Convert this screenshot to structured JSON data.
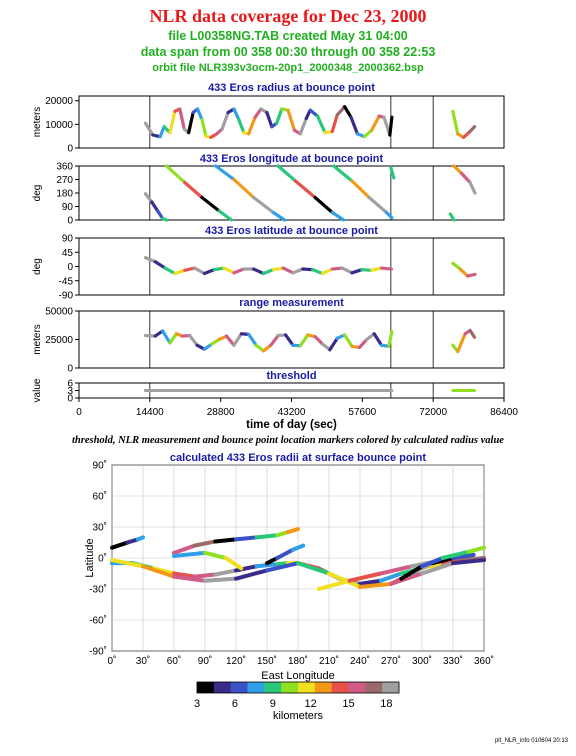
{
  "header": {
    "title": "NLR data coverage for Dec 23, 2000",
    "file_line": "file L00358NG.TAB created May 31 04:00",
    "span_line": "data span from 00 358 00:30 through 00 358 22:53",
    "orbit_line": "orbit file NLR393v3ocm-20p1_2000348_2000362.bsp"
  },
  "caption": "threshold, NLR measurement and bounce point location markers colored by calculated radius value",
  "footer": "plt_NLR_info 010604 20:13",
  "colors": {
    "title": "#e8181a",
    "subtitle": "#20b020",
    "panel_title": "#1a1aa8",
    "colorbar": [
      "#000000",
      "#3a2a8a",
      "#3a52c8",
      "#2fa0e8",
      "#28c878",
      "#8ee020",
      "#f0e020",
      "#f29a18",
      "#e8504a",
      "#d05a88",
      "#9a6a6a",
      "#a0a0a0"
    ]
  },
  "chart_data": [
    {
      "type": "line",
      "title": "433 Eros radius at bounce point",
      "ylabel": "meters",
      "yticks": [
        "0",
        "10000",
        "20000"
      ],
      "ylim": [
        0,
        22000
      ],
      "xlim": [
        0,
        86400
      ],
      "vlines": [
        14400,
        63400,
        72000
      ],
      "segments": [
        {
          "x": [
            13500,
            15000,
            16500,
            17300,
            18500,
            19500,
            20500,
            21400,
            22300,
            23200,
            24100,
            25000,
            25800,
            26800,
            28000,
            29100,
            30300,
            31500,
            32500,
            33500,
            34500,
            35800,
            37000,
            38200,
            39200,
            40200,
            41200,
            42500,
            43800,
            45000,
            46200,
            47000,
            48500,
            50000,
            51500,
            52500,
            54000,
            55300,
            56600,
            58000,
            59500,
            61000,
            62000,
            63200,
            63600
          ],
          "y": [
            10500,
            5500,
            4800,
            9000,
            6500,
            15500,
            16500,
            8000,
            6500,
            15000,
            16500,
            12000,
            5000,
            4500,
            6000,
            8000,
            15000,
            16500,
            12000,
            6500,
            6000,
            13000,
            16500,
            15000,
            9000,
            10500,
            16500,
            16000,
            7500,
            6000,
            12500,
            16000,
            13500,
            6500,
            7000,
            14000,
            17500,
            13000,
            6000,
            4800,
            7500,
            13500,
            13000,
            5500,
            13000
          ]
        },
        {
          "x": [
            76000,
            77000,
            78200,
            79500,
            80400
          ],
          "y": [
            15500,
            6000,
            4500,
            7000,
            9000
          ]
        }
      ]
    },
    {
      "type": "line",
      "title": "433 Eros longitude at bounce point",
      "ylabel": "deg",
      "yticks": [
        "0",
        "90",
        "180",
        "270",
        "360"
      ],
      "ylim": [
        0,
        360
      ],
      "xlim": [
        0,
        86400
      ],
      "vlines": [
        14400,
        63400,
        72000
      ],
      "segments": [
        {
          "x": [
            13500,
            14800,
            16000,
            17000,
            17800
          ],
          "y": [
            175,
            120,
            60,
            10,
            0
          ]
        },
        {
          "x": [
            17800,
            21500,
            25000,
            28500,
            31000
          ],
          "y": [
            360,
            250,
            150,
            60,
            0
          ]
        },
        {
          "x": [
            27800,
            31500,
            35500,
            39500,
            41800
          ],
          "y": [
            360,
            270,
            150,
            50,
            0
          ]
        },
        {
          "x": [
            40500,
            44000,
            48000,
            51500,
            53800
          ],
          "y": [
            360,
            260,
            150,
            50,
            0
          ]
        },
        {
          "x": [
            51800,
            55500,
            59000,
            62500,
            63600
          ],
          "y": [
            360,
            260,
            150,
            50,
            15
          ]
        },
        {
          "x": [
            63400,
            64000
          ],
          "y": [
            350,
            280
          ]
        },
        {
          "x": [
            75500,
            76200
          ],
          "y": [
            40,
            0
          ]
        },
        {
          "x": [
            76200,
            77800,
            79500,
            80500
          ],
          "y": [
            360,
            310,
            250,
            180
          ]
        }
      ]
    },
    {
      "type": "line",
      "title": "433 Eros latitude at bounce point",
      "ylabel": "deg",
      "yticks": [
        "-90",
        "-45",
        "0",
        "45",
        "90"
      ],
      "ylim": [
        -90,
        90
      ],
      "xlim": [
        0,
        86400
      ],
      "vlines": [
        14400,
        63400,
        72000
      ],
      "segments": [
        {
          "x": [
            13500,
            15500,
            17500,
            19500,
            21500,
            23500,
            25500,
            27500,
            29500,
            31500,
            33500,
            35500,
            37500,
            39500,
            41500,
            43500,
            45500,
            47500,
            49500,
            51500,
            53500,
            55500,
            57500,
            59500,
            61500,
            63500
          ],
          "y": [
            28,
            15,
            -5,
            -22,
            -12,
            -5,
            -22,
            -10,
            -5,
            -20,
            -8,
            -8,
            -22,
            -10,
            -5,
            -20,
            -8,
            -10,
            -22,
            -8,
            -5,
            -20,
            -10,
            -12,
            -5,
            -8
          ]
        },
        {
          "x": [
            76000,
            77500,
            79000,
            80500
          ],
          "y": [
            10,
            -8,
            -30,
            -25
          ]
        }
      ]
    },
    {
      "type": "line",
      "title": "range measurement",
      "ylabel": "meters",
      "yticks": [
        "0",
        "25000",
        "50000"
      ],
      "ylim": [
        0,
        50000
      ],
      "xlim": [
        0,
        86400
      ],
      "vlines": [
        14400,
        63400,
        72000
      ],
      "segments": [
        {
          "x": [
            13500,
            15500,
            17000,
            18500,
            19800,
            21000,
            22500,
            24000,
            25500,
            27000,
            28500,
            30000,
            31500,
            33000,
            34500,
            36000,
            37500,
            39000,
            40500,
            42000,
            43500,
            45000,
            46500,
            48000,
            49500,
            51000,
            52500,
            54000,
            55500,
            57000,
            58500,
            60000,
            61500,
            63000,
            63600
          ],
          "y": [
            28500,
            28000,
            32500,
            22000,
            30000,
            28000,
            28500,
            20000,
            16500,
            21000,
            25000,
            28000,
            20000,
            30000,
            29500,
            20000,
            15000,
            20000,
            28500,
            29000,
            20000,
            19500,
            29000,
            27500,
            21000,
            16000,
            26000,
            29000,
            19000,
            18000,
            25000,
            30000,
            20000,
            19000,
            32000
          ]
        },
        {
          "x": [
            76000,
            77000,
            78500,
            79500,
            80400
          ],
          "y": [
            20000,
            14500,
            30000,
            33000,
            27000
          ]
        }
      ]
    },
    {
      "type": "line",
      "title": "threshold",
      "ylabel": "value",
      "yticks": [
        "0",
        "3",
        "6"
      ],
      "ylim": [
        0,
        6
      ],
      "xlim": [
        0,
        86400
      ],
      "xlabel": "time of day (sec)",
      "xticks": [
        "0",
        "14400",
        "28800",
        "43200",
        "57600",
        "72000",
        "86400"
      ],
      "vlines": [
        14400,
        63400,
        72000
      ],
      "segments": [
        {
          "x": [
            13500,
            63600
          ],
          "y": [
            3,
            3
          ]
        },
        {
          "x": [
            76000,
            80400
          ],
          "y": [
            3,
            3
          ]
        }
      ]
    },
    {
      "type": "line",
      "title": "calculated 433 Eros radii at surface bounce point",
      "xlabel": "East Longitude",
      "ylabel": "Latitude",
      "xlim": [
        0,
        360
      ],
      "ylim": [
        -90,
        90
      ],
      "xticks": [
        "0˚",
        "30˚",
        "60˚",
        "90˚",
        "120˚",
        "150˚",
        "180˚",
        "210˚",
        "240˚",
        "270˚",
        "300˚",
        "330˚",
        "360˚"
      ],
      "yticks": [
        "-90˚",
        "-60˚",
        "-30˚",
        "0˚",
        "30˚",
        "60˚",
        "90˚"
      ],
      "segments": [
        {
          "x": [
            0,
            15,
            25,
            30
          ],
          "y": [
            10,
            15,
            18,
            20
          ]
        },
        {
          "x": [
            0,
            20,
            40,
            60,
            80,
            100,
            120,
            140,
            160,
            170,
            180,
            200,
            220,
            240,
            260,
            280,
            300,
            320,
            340,
            360
          ],
          "y": [
            -5,
            -5,
            -10,
            -15,
            -18,
            -16,
            -12,
            -8,
            -6,
            -5,
            -5,
            -10,
            -20,
            -25,
            -22,
            -15,
            -10,
            -5,
            -2,
            0
          ]
        },
        {
          "x": [
            0,
            30,
            60,
            90,
            120,
            150,
            180,
            210,
            240,
            270,
            300,
            330,
            360
          ],
          "y": [
            -2,
            -8,
            -18,
            -22,
            -20,
            -12,
            -5,
            -15,
            -28,
            -25,
            -15,
            -5,
            -2
          ]
        },
        {
          "x": [
            60,
            80,
            100,
            120,
            140,
            160,
            170,
            180
          ],
          "y": [
            5,
            12,
            16,
            18,
            20,
            22,
            25,
            28
          ]
        },
        {
          "x": [
            150,
            160,
            175,
            185
          ],
          "y": [
            -5,
            0,
            8,
            12
          ]
        },
        {
          "x": [
            60,
            90,
            110,
            125
          ],
          "y": [
            2,
            5,
            0,
            -10
          ]
        },
        {
          "x": [
            200,
            230,
            260,
            290,
            320
          ],
          "y": [
            -30,
            -22,
            -15,
            -8,
            -2
          ]
        },
        {
          "x": [
            270,
            290,
            310,
            330,
            350
          ],
          "y": [
            -25,
            -15,
            -5,
            0,
            3
          ]
        },
        {
          "x": [
            280,
            300,
            320,
            345,
            360
          ],
          "y": [
            -20,
            -8,
            0,
            6,
            10
          ]
        }
      ],
      "colorbar": {
        "label": "kilometers",
        "ticks": [
          "3",
          "6",
          "9",
          "12",
          "15",
          "18"
        ],
        "range": [
          3,
          19
        ]
      }
    }
  ]
}
